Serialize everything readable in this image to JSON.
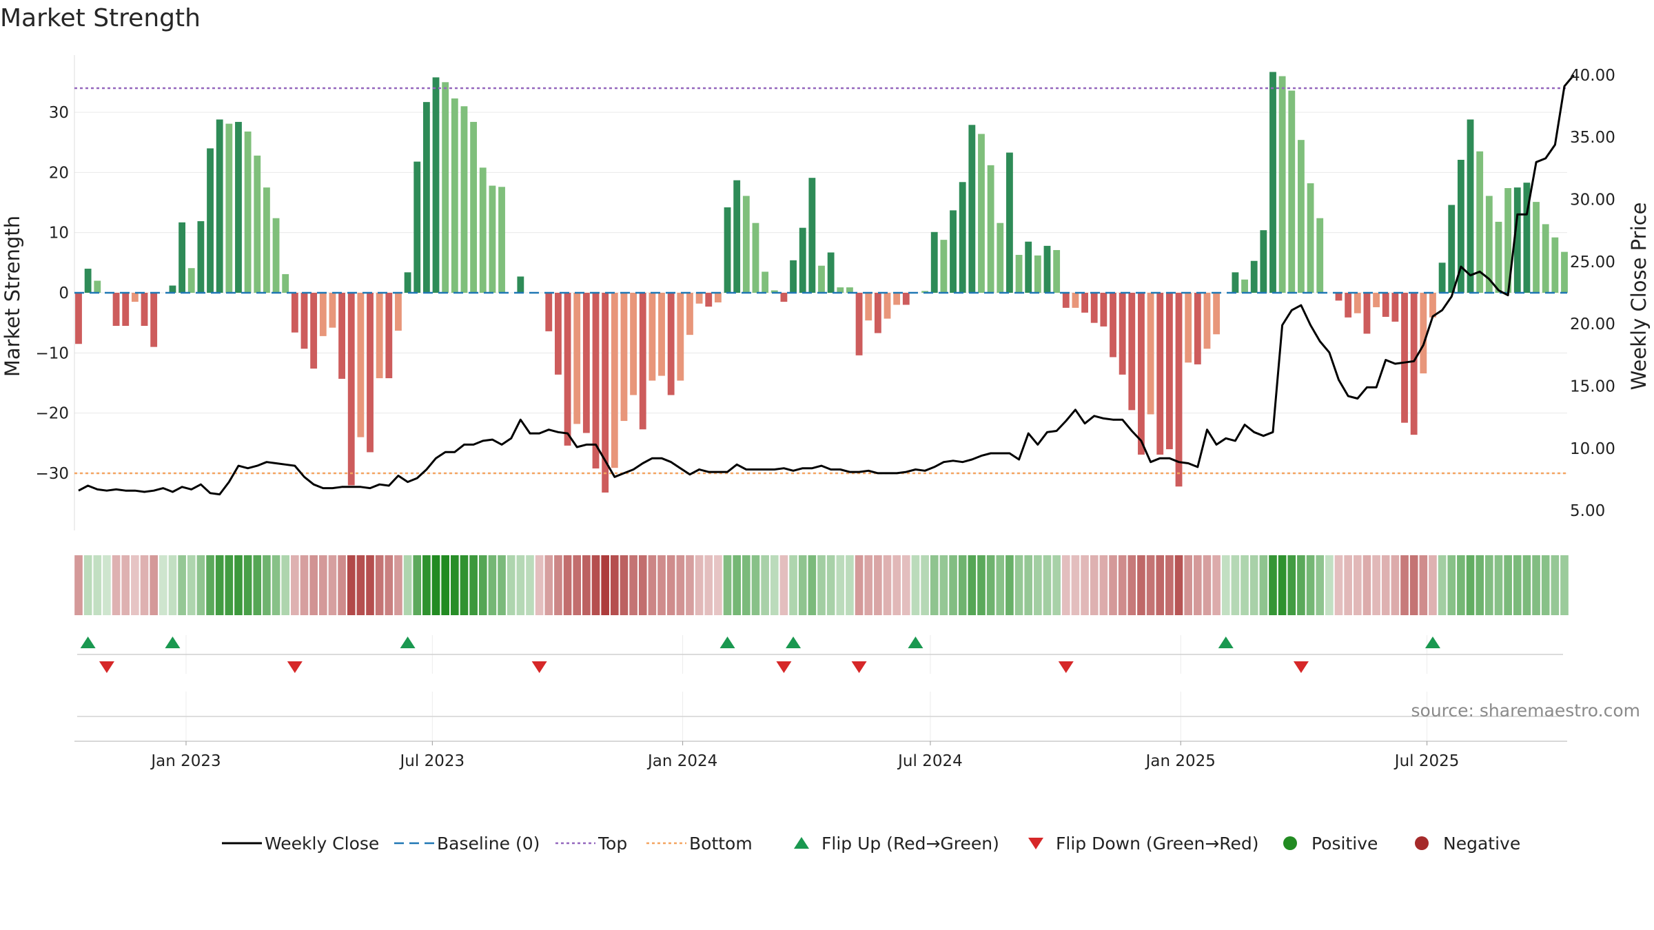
{
  "chart_data": {
    "type": "bar",
    "title": "Market Strength",
    "ylabel": "Market Strength",
    "y2label": "Weekly Close Price",
    "ylim": [
      -39.5,
      39.5
    ],
    "y2lim": [
      3.4,
      41.6
    ],
    "yticks": [
      -30,
      -20,
      -10,
      0,
      10,
      20,
      30
    ],
    "yticklabels": [
      "−30",
      "−20",
      "−10",
      "0",
      "10",
      "20",
      "30"
    ],
    "y2ticks": [
      5,
      10,
      15,
      20,
      25,
      30,
      35,
      40
    ],
    "y2ticklabels": [
      "5.00",
      "10.00",
      "15.00",
      "20.00",
      "25.00",
      "30.00",
      "35.00",
      "40.00"
    ],
    "x_start": "2022-10-14",
    "x_end": "2025-10-10",
    "xticks": [
      "2023-01-01",
      "2023-07-01",
      "2024-01-01",
      "2024-07-01",
      "2025-01-01",
      "2025-07-01"
    ],
    "xticklabels": [
      "Jan 2023",
      "Jul 2023",
      "Jan 2024",
      "Jul 2024",
      "Jan 2025",
      "Jul 2025"
    ],
    "grid": true,
    "legend_position": "bottom",
    "top_line": 34,
    "bottom_line": -30,
    "colors": {
      "pos_strong": "#2e8b57",
      "pos_weak": "#7fbf7b",
      "neg_strong": "#cd5c5c",
      "neg_weak": "#e8967a",
      "close": "#000000",
      "baseline": "#1f77b4",
      "top": "#9467bd",
      "bottom": "#f4a460",
      "flip_up": "#1a9850",
      "flip_down": "#d62728",
      "positive": "#228b22",
      "negative": "#a52a2a"
    },
    "strength": [
      -8.5,
      4,
      2,
      0,
      -5.5,
      -5.5,
      -1.5,
      -5.5,
      -9,
      0,
      1.2,
      11.7,
      4.1,
      11.9,
      24,
      28.8,
      28.1,
      28.4,
      26.8,
      22.8,
      17.5,
      12.4,
      3.1,
      -6.6,
      -9.3,
      -12.6,
      -7.2,
      -5.8,
      -14.3,
      -32,
      -24,
      -26.5,
      -14.2,
      -14.2,
      -6.3,
      3.4,
      21.8,
      31.7,
      35.8,
      35,
      32.3,
      31,
      28.4,
      20.8,
      17.8,
      17.6,
      0,
      2.7,
      0,
      0,
      -6.4,
      -13.6,
      -25.4,
      -21.8,
      -23.3,
      -29.2,
      -33.2,
      -29.1,
      -21.3,
      -17,
      -22.7,
      -14.6,
      -13.8,
      -17,
      -14.6,
      -7,
      -1.8,
      -2.3,
      -1.6,
      14.2,
      18.7,
      16.1,
      11.6,
      3.5,
      0.4,
      -1.5,
      5.4,
      10.8,
      19.1,
      4.5,
      6.7,
      0.9,
      0.9,
      -10.4,
      -4.6,
      -6.7,
      -4.3,
      -2,
      -2,
      0,
      0.3,
      10.1,
      8.8,
      13.7,
      18.4,
      27.9,
      26.4,
      21.2,
      11.6,
      23.3,
      6.3,
      8.5,
      6.2,
      7.8,
      7.1,
      -2.5,
      -2.5,
      -3.3,
      -5,
      -5.6,
      -10.7,
      -13.6,
      -19.5,
      -26.9,
      -20.2,
      -26.9,
      -26,
      -32.2,
      -11.6,
      -11.9,
      -9.3,
      -6.9,
      0,
      3.4,
      2.2,
      5.3,
      10.4,
      36.7,
      36,
      33.6,
      25.4,
      18.2,
      12.4,
      0,
      -1.3,
      -4.1,
      -3.4,
      -6.8,
      -2.4,
      -4,
      -4.8,
      -21.6,
      -23.6,
      -13.4,
      -4.1,
      5,
      14.6,
      22.1,
      28.8,
      23.5,
      16.1,
      11.8,
      17.4,
      17.5,
      18.3,
      15.1,
      11.4,
      9.2,
      6.8
    ],
    "strength_shades": [
      "strong",
      "strong",
      "weak",
      "strong",
      "strong",
      "strong",
      "weak",
      "strong",
      "strong",
      "strong",
      "strong",
      "strong",
      "weak",
      "strong",
      "strong",
      "strong",
      "weak",
      "strong",
      "weak",
      "weak",
      "weak",
      "weak",
      "weak",
      "strong",
      "strong",
      "strong",
      "weak",
      "weak",
      "strong",
      "strong",
      "weak",
      "strong",
      "weak",
      "strong",
      "weak",
      "strong",
      "strong",
      "strong",
      "strong",
      "weak",
      "weak",
      "weak",
      "weak",
      "weak",
      "weak",
      "weak",
      "strong",
      "strong",
      "strong",
      "strong",
      "strong",
      "strong",
      "strong",
      "weak",
      "strong",
      "strong",
      "strong",
      "weak",
      "weak",
      "weak",
      "strong",
      "weak",
      "weak",
      "strong",
      "weak",
      "weak",
      "weak",
      "strong",
      "weak",
      "strong",
      "strong",
      "weak",
      "weak",
      "weak",
      "weak",
      "strong",
      "strong",
      "strong",
      "strong",
      "weak",
      "strong",
      "weak",
      "weak",
      "strong",
      "weak",
      "strong",
      "weak",
      "weak",
      "strong",
      "strong",
      "weak",
      "strong",
      "weak",
      "strong",
      "strong",
      "strong",
      "weak",
      "weak",
      "weak",
      "strong",
      "weak",
      "strong",
      "weak",
      "strong",
      "weak",
      "strong",
      "weak",
      "strong",
      "strong",
      "strong",
      "strong",
      "strong",
      "strong",
      "strong",
      "weak",
      "strong",
      "strong",
      "strong",
      "weak",
      "strong",
      "weak",
      "weak",
      "strong",
      "strong",
      "weak",
      "strong",
      "strong",
      "strong",
      "weak",
      "weak",
      "weak",
      "weak",
      "weak",
      "strong",
      "strong",
      "strong",
      "weak",
      "strong",
      "weak",
      "strong",
      "strong",
      "strong",
      "strong",
      "weak",
      "weak",
      "strong",
      "strong",
      "strong",
      "strong",
      "weak",
      "weak",
      "weak",
      "weak",
      "strong",
      "strong",
      "weak",
      "weak",
      "weak",
      "weak"
    ],
    "close": [
      6.6,
      7,
      6.7,
      6.6,
      6.7,
      6.6,
      6.6,
      6.5,
      6.6,
      6.8,
      6.5,
      6.9,
      6.7,
      7.1,
      6.4,
      6.3,
      7.3,
      8.6,
      8.4,
      8.6,
      8.9,
      8.8,
      8.7,
      8.6,
      7.7,
      7.1,
      6.8,
      6.8,
      6.9,
      6.9,
      6.9,
      6.8,
      7.1,
      7.0,
      7.8,
      7.3,
      7.6,
      8.3,
      9.2,
      9.7,
      9.7,
      10.3,
      10.3,
      10.6,
      10.7,
      10.3,
      10.8,
      12.3,
      11.2,
      11.2,
      11.5,
      11.3,
      11.2,
      10.1,
      10.3,
      10.3,
      9.0,
      7.7,
      8.0,
      8.3,
      8.8,
      9.2,
      9.2,
      8.9,
      8.4,
      7.9,
      8.3,
      8.1,
      8.1,
      8.1,
      8.7,
      8.3,
      8.3,
      8.3,
      8.3,
      8.4,
      8.2,
      8.4,
      8.4,
      8.6,
      8.3,
      8.3,
      8.1,
      8.1,
      8.2,
      8.0,
      8.0,
      8.0,
      8.1,
      8.3,
      8.2,
      8.5,
      8.9,
      9.0,
      8.9,
      9.1,
      9.4,
      9.6,
      9.6,
      9.6,
      9.1,
      11.2,
      10.3,
      11.3,
      11.4,
      12.2,
      13.1,
      12.0,
      12.6,
      12.4,
      12.3,
      12.3,
      11.4,
      10.6,
      8.9,
      9.2,
      9.2,
      8.9,
      8.8,
      8.5,
      11.5,
      10.3,
      10.8,
      10.6,
      11.9,
      11.3,
      11.0,
      11.3,
      19.9,
      21.1,
      21.5,
      19.9,
      18.6,
      17.7,
      15.5,
      14.2,
      14.0,
      14.9,
      14.9,
      17.1,
      16.8,
      16.9,
      17.0,
      18.3,
      20.6,
      21.1,
      22.2,
      24.6,
      23.9,
      24.2,
      23.6,
      22.7,
      22.3,
      28.8,
      28.8,
      33.0,
      33.3,
      34.4,
      39.1,
      40.0
    ],
    "heat_strip": [
      -9,
      3,
      2,
      0,
      -5,
      -5,
      -2,
      -5,
      -9,
      0,
      2,
      9,
      5,
      10,
      18,
      22,
      22,
      23,
      21,
      19,
      15,
      11,
      5,
      -5,
      -8,
      -10,
      -9,
      -8,
      -11,
      -22,
      -21,
      -21,
      -15,
      -13,
      -9,
      5,
      18,
      25,
      27,
      27,
      26,
      25,
      23,
      19,
      14,
      13,
      5,
      4,
      3,
      -3,
      -8,
      -12,
      -16,
      -16,
      -18,
      -21,
      -24,
      -21,
      -18,
      -15,
      -16,
      -12,
      -11,
      -11,
      -10,
      -8,
      -4,
      -3,
      -2,
      12,
      14,
      13,
      11,
      6,
      3,
      -3,
      5,
      10,
      13,
      7,
      6,
      3,
      3,
      -9,
      -7,
      -7,
      -5,
      -4,
      -3,
      3,
      4,
      10,
      9,
      12,
      15,
      19,
      18,
      15,
      11,
      16,
      9,
      9,
      7,
      7,
      6,
      -3,
      -3,
      -4,
      -5,
      -6,
      -9,
      -11,
      -14,
      -17,
      -15,
      -17,
      -16,
      -20,
      -10,
      -9,
      -8,
      -6,
      2,
      4,
      5,
      6,
      10,
      24,
      25,
      22,
      18,
      14,
      10,
      2,
      -3,
      -4,
      -4,
      -6,
      -4,
      -5,
      -6,
      -14,
      -15,
      -11,
      -5,
      7,
      11,
      14,
      17,
      15,
      12,
      11,
      13,
      13,
      13,
      12,
      11,
      9,
      8
    ],
    "flip_up_weeks": [
      1,
      10,
      35,
      69,
      76,
      89,
      122,
      144
    ],
    "flip_down_weeks": [
      3,
      23,
      49,
      75,
      83,
      105,
      130
    ],
    "legend": [
      {
        "name": "Weekly Close",
        "kind": "line"
      },
      {
        "name": "Baseline (0)",
        "kind": "baseline"
      },
      {
        "name": "Top",
        "kind": "top"
      },
      {
        "name": "Bottom",
        "kind": "bottom"
      },
      {
        "name": "Flip Up (Red→Green)",
        "kind": "flip_up"
      },
      {
        "name": "Flip Down (Green→Red)",
        "kind": "flip_down"
      },
      {
        "name": "Positive",
        "kind": "positive"
      },
      {
        "name": "Negative",
        "kind": "negative"
      }
    ],
    "source": "source: sharemaestro.com"
  }
}
